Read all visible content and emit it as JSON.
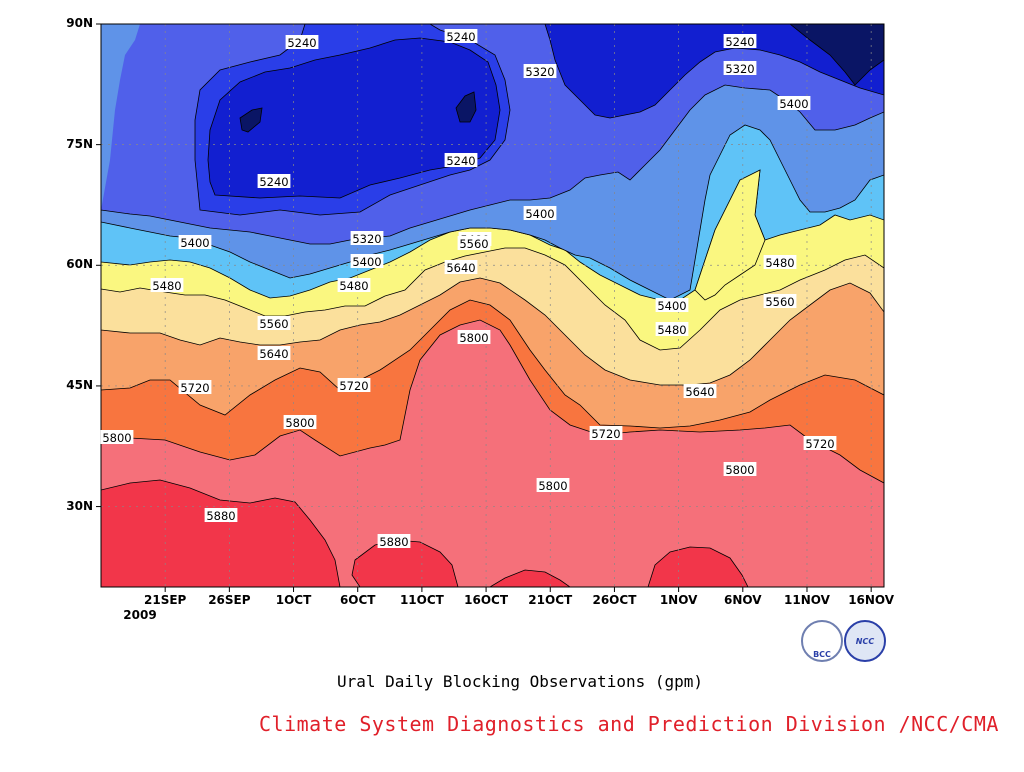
{
  "chart_data": {
    "type": "heatmap",
    "subtype": "filled-contour",
    "variable": "gpm",
    "x_ticks": [
      "21SEP",
      "26SEP",
      "1OCT",
      "6OCT",
      "11OCT",
      "16OCT",
      "21OCT",
      "26OCT",
      "1NOV",
      "6NOV",
      "11NOV",
      "16NOV"
    ],
    "x_tick_sub": "2009",
    "y_ticks": [
      "30N",
      "45N",
      "60N",
      "75N",
      "90N"
    ],
    "y_tick_values": [
      30,
      45,
      60,
      75,
      90
    ],
    "ylim": [
      20,
      90
    ],
    "xlim_days": [
      -5,
      56
    ],
    "grid": true,
    "levels": [
      5240,
      5320,
      5400,
      5480,
      5560,
      5640,
      5720,
      5800,
      5880
    ],
    "colors": [
      "#0a1565",
      "#121fd0",
      "#2a3ee8",
      "#5060ea",
      "#5f93e8",
      "#5fc3f7",
      "#faf780",
      "#fbe09c",
      "#f8a36a",
      "#f8753f",
      "#f5707a",
      "#f2364a"
    ],
    "contour_labels": [
      "5240",
      "5240",
      "5240",
      "5240",
      "5240",
      "5320",
      "5320",
      "5320",
      "5400",
      "5400",
      "5400",
      "5400",
      "5400",
      "5480",
      "5480",
      "5480",
      "5480",
      "5480",
      "5560",
      "5560",
      "5560",
      "5640",
      "5640",
      "5640",
      "5720",
      "5720",
      "5720",
      "5720",
      "5800",
      "5800",
      "5800",
      "5800",
      "5800",
      "5880",
      "5880"
    ],
    "caption": "Ural Daily Blocking Observations (gpm)",
    "credit": "Climate System Diagnostics and Prediction Division /NCC/CMA"
  },
  "logos": {
    "bcc": "BCC",
    "ncc": "NCC"
  }
}
